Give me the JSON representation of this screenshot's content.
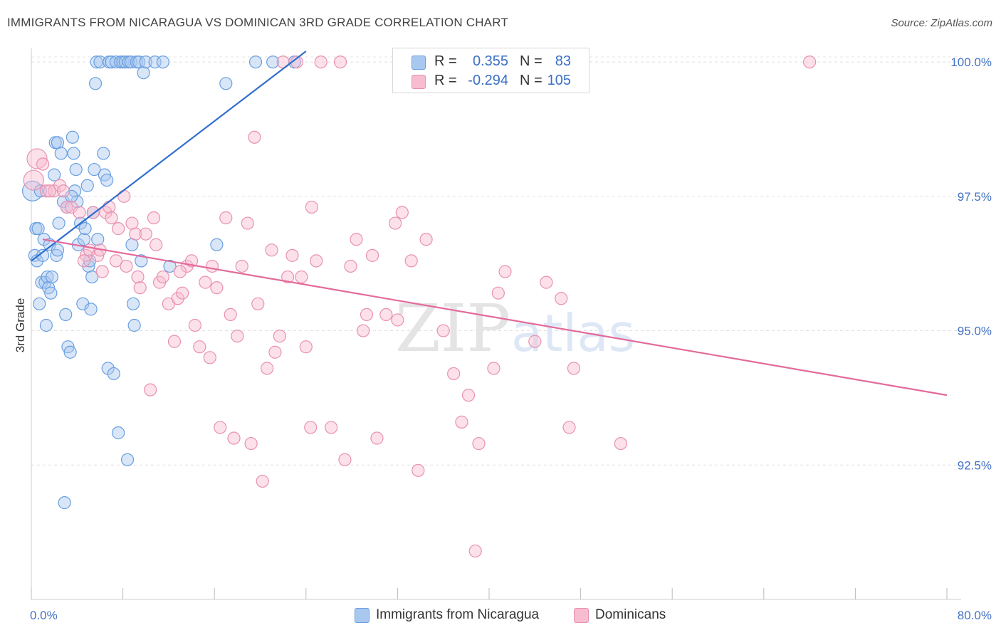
{
  "title": "IMMIGRANTS FROM NICARAGUA VS DOMINICAN 3RD GRADE CORRELATION CHART",
  "source": "Source: ZipAtlas.com",
  "watermark": {
    "zip": "ZIP",
    "atlas": "atlas"
  },
  "legend_top": {
    "rows": [
      {
        "r_label": "R =",
        "r_value": "0.355",
        "n_label": "N =",
        "n_value": "83",
        "color": "#a8c8f0",
        "border": "#6a9fe0"
      },
      {
        "r_label": "R =",
        "r_value": "-0.294",
        "n_label": "N =",
        "n_value": "105",
        "color": "#f8bcd0",
        "border": "#e891b0"
      }
    ]
  },
  "chart_data": {
    "type": "scatter",
    "title": "IMMIGRANTS FROM NICARAGUA VS DOMINICAN 3RD GRADE CORRELATION CHART",
    "xlabel": "",
    "ylabel": "3rd Grade",
    "xlim": [
      0,
      80
    ],
    "ylim": [
      90.0,
      100.2
    ],
    "x_tick_labels": [
      "0.0%",
      "80.0%"
    ],
    "y_ticks": [
      92.5,
      95.0,
      97.5,
      100.0
    ],
    "y_tick_labels": [
      "92.5%",
      "95.0%",
      "97.5%",
      "100.0%"
    ],
    "grid": true,
    "legend_placement": "bottom",
    "series": [
      {
        "name": "Immigrants from Nicaragua",
        "color": "#6a9fe0",
        "fill": "#a8c8f0",
        "trend": {
          "x": [
            0.0,
            24.0
          ],
          "y": [
            96.3,
            100.2
          ]
        },
        "points": [
          [
            0.1,
            97.6
          ],
          [
            0.3,
            96.4
          ],
          [
            0.4,
            96.9
          ],
          [
            0.5,
            96.3
          ],
          [
            0.6,
            96.9
          ],
          [
            0.7,
            95.5
          ],
          [
            0.9,
            95.9
          ],
          [
            1.0,
            96.4
          ],
          [
            1.1,
            96.7
          ],
          [
            1.2,
            95.9
          ],
          [
            1.3,
            95.1
          ],
          [
            1.4,
            96.0
          ],
          [
            1.5,
            95.8
          ],
          [
            1.6,
            96.6
          ],
          [
            1.7,
            95.7
          ],
          [
            1.8,
            96.0
          ],
          [
            2.0,
            97.9
          ],
          [
            2.1,
            98.5
          ],
          [
            2.2,
            96.4
          ],
          [
            2.3,
            96.5
          ],
          [
            2.3,
            98.5
          ],
          [
            2.4,
            97.0
          ],
          [
            2.6,
            98.3
          ],
          [
            2.8,
            97.4
          ],
          [
            3.0,
            95.3
          ],
          [
            3.1,
            97.3
          ],
          [
            3.2,
            94.7
          ],
          [
            3.4,
            94.6
          ],
          [
            3.6,
            98.6
          ],
          [
            3.7,
            98.3
          ],
          [
            3.8,
            97.6
          ],
          [
            3.9,
            98.0
          ],
          [
            4.0,
            97.4
          ],
          [
            4.1,
            96.6
          ],
          [
            4.3,
            97.0
          ],
          [
            4.5,
            95.5
          ],
          [
            4.6,
            96.7
          ],
          [
            4.7,
            96.9
          ],
          [
            4.9,
            97.7
          ],
          [
            5.0,
            96.2
          ],
          [
            5.1,
            96.3
          ],
          [
            5.2,
            95.4
          ],
          [
            5.3,
            96.0
          ],
          [
            5.4,
            97.2
          ],
          [
            5.5,
            98.0
          ],
          [
            5.6,
            99.6
          ],
          [
            5.7,
            100.0
          ],
          [
            5.8,
            96.7
          ],
          [
            6.0,
            100.0
          ],
          [
            6.3,
            98.3
          ],
          [
            6.4,
            97.9
          ],
          [
            6.6,
            97.8
          ],
          [
            6.7,
            94.3
          ],
          [
            6.8,
            100.0
          ],
          [
            7.0,
            100.0
          ],
          [
            7.2,
            94.2
          ],
          [
            7.4,
            100.0
          ],
          [
            7.6,
            93.1
          ],
          [
            7.8,
            100.0
          ],
          [
            8.0,
            100.0
          ],
          [
            8.2,
            100.0
          ],
          [
            8.4,
            92.6
          ],
          [
            8.5,
            100.0
          ],
          [
            8.7,
            100.0
          ],
          [
            8.8,
            96.6
          ],
          [
            8.9,
            95.5
          ],
          [
            9.0,
            95.1
          ],
          [
            9.2,
            100.0
          ],
          [
            9.4,
            100.0
          ],
          [
            9.6,
            96.3
          ],
          [
            9.8,
            99.8
          ],
          [
            10.0,
            100.0
          ],
          [
            10.8,
            100.0
          ],
          [
            11.5,
            100.0
          ],
          [
            12.1,
            96.2
          ],
          [
            16.2,
            96.6
          ],
          [
            17.0,
            99.6
          ],
          [
            19.6,
            100.0
          ],
          [
            21.1,
            100.0
          ],
          [
            23.0,
            100.0
          ],
          [
            2.9,
            91.8
          ],
          [
            0.8,
            97.6
          ],
          [
            3.5,
            97.5
          ]
        ]
      },
      {
        "name": "Dominicans",
        "color": "#e891b0",
        "fill": "#f8bcd0",
        "trend": {
          "x": [
            1.0,
            80.0
          ],
          "y": [
            96.7,
            93.8
          ]
        },
        "points": [
          [
            0.2,
            97.8
          ],
          [
            0.5,
            98.2
          ],
          [
            1.0,
            98.1
          ],
          [
            1.3,
            97.6
          ],
          [
            2.0,
            97.6
          ],
          [
            2.5,
            97.7
          ],
          [
            3.1,
            97.3
          ],
          [
            3.5,
            97.3
          ],
          [
            4.2,
            97.2
          ],
          [
            4.8,
            96.4
          ],
          [
            5.1,
            96.5
          ],
          [
            5.4,
            97.2
          ],
          [
            5.8,
            96.4
          ],
          [
            6.2,
            96.1
          ],
          [
            6.5,
            97.2
          ],
          [
            6.8,
            97.3
          ],
          [
            7.0,
            97.1
          ],
          [
            7.4,
            96.3
          ],
          [
            7.6,
            96.9
          ],
          [
            8.1,
            97.5
          ],
          [
            8.3,
            96.2
          ],
          [
            8.8,
            97.0
          ],
          [
            9.1,
            96.8
          ],
          [
            9.5,
            95.8
          ],
          [
            10.0,
            96.8
          ],
          [
            10.4,
            93.9
          ],
          [
            10.7,
            97.1
          ],
          [
            10.9,
            96.6
          ],
          [
            11.2,
            95.9
          ],
          [
            11.5,
            96.0
          ],
          [
            12.0,
            95.5
          ],
          [
            12.5,
            94.8
          ],
          [
            12.8,
            95.6
          ],
          [
            13.2,
            95.7
          ],
          [
            13.6,
            96.2
          ],
          [
            14.0,
            96.3
          ],
          [
            14.3,
            95.1
          ],
          [
            14.7,
            94.7
          ],
          [
            15.2,
            95.9
          ],
          [
            15.6,
            94.5
          ],
          [
            15.8,
            96.2
          ],
          [
            16.2,
            95.8
          ],
          [
            16.5,
            93.2
          ],
          [
            17.0,
            97.1
          ],
          [
            17.4,
            95.3
          ],
          [
            17.7,
            93.0
          ],
          [
            18.0,
            94.9
          ],
          [
            18.4,
            96.2
          ],
          [
            18.9,
            97.0
          ],
          [
            19.2,
            92.9
          ],
          [
            19.5,
            98.6
          ],
          [
            19.8,
            95.5
          ],
          [
            20.2,
            92.2
          ],
          [
            20.6,
            94.3
          ],
          [
            21.0,
            96.5
          ],
          [
            21.3,
            94.6
          ],
          [
            21.7,
            94.9
          ],
          [
            22.0,
            100.0
          ],
          [
            22.4,
            96.0
          ],
          [
            22.8,
            96.4
          ],
          [
            23.2,
            100.0
          ],
          [
            23.6,
            96.0
          ],
          [
            24.0,
            94.7
          ],
          [
            24.4,
            93.2
          ],
          [
            24.9,
            96.3
          ],
          [
            25.3,
            100.0
          ],
          [
            26.2,
            93.2
          ],
          [
            27.0,
            100.0
          ],
          [
            27.4,
            92.6
          ],
          [
            27.9,
            96.2
          ],
          [
            28.4,
            96.7
          ],
          [
            29.0,
            95.0
          ],
          [
            29.3,
            95.3
          ],
          [
            29.8,
            96.4
          ],
          [
            30.2,
            93.0
          ],
          [
            31.0,
            95.3
          ],
          [
            32.0,
            95.2
          ],
          [
            32.4,
            97.2
          ],
          [
            33.2,
            96.3
          ],
          [
            33.8,
            92.4
          ],
          [
            34.5,
            96.7
          ],
          [
            36.0,
            95.0
          ],
          [
            36.9,
            94.2
          ],
          [
            37.6,
            93.3
          ],
          [
            38.2,
            93.8
          ],
          [
            38.8,
            90.9
          ],
          [
            39.1,
            92.9
          ],
          [
            40.4,
            94.3
          ],
          [
            40.8,
            95.7
          ],
          [
            41.4,
            96.1
          ],
          [
            44.0,
            94.8
          ],
          [
            45.0,
            95.9
          ],
          [
            46.3,
            95.6
          ],
          [
            47.0,
            93.2
          ],
          [
            47.4,
            94.3
          ],
          [
            51.5,
            92.9
          ],
          [
            68.0,
            100.0
          ],
          [
            6.0,
            96.5
          ],
          [
            13.0,
            96.1
          ],
          [
            24.5,
            97.3
          ],
          [
            1.6,
            97.6
          ],
          [
            2.8,
            97.6
          ],
          [
            9.3,
            96.0
          ],
          [
            31.8,
            97.0
          ],
          [
            4.6,
            96.3
          ]
        ]
      }
    ]
  },
  "legend_bottom": [
    {
      "label": "Immigrants from Nicaragua",
      "color": "#a8c8f0",
      "border": "#6a9fe0"
    },
    {
      "label": "Dominicans",
      "color": "#f8bcd0",
      "border": "#e891b0"
    }
  ]
}
